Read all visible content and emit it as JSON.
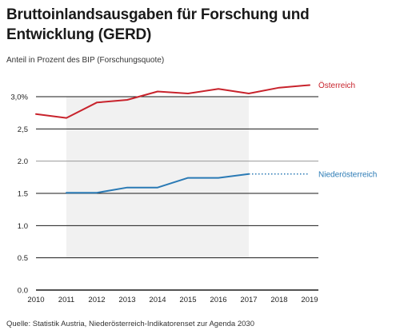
{
  "chart_data": {
    "type": "line",
    "title": "Bruttoinlandsausgaben für Forschung und Entwicklung (GERD)",
    "subtitle": "Anteil in Prozent des BIP (Forschungsquote)",
    "source": "Quelle: Statistik Austria, Niederösterreich-Indikatorenset zur Agenda 2030",
    "x": [
      2010,
      2011,
      2012,
      2013,
      2014,
      2015,
      2016,
      2017,
      2018,
      2019
    ],
    "xlim": [
      2010,
      2019
    ],
    "ylim": [
      0,
      3.0
    ],
    "yticks": [
      {
        "value": 0.0,
        "label": "0.0"
      },
      {
        "value": 0.5,
        "label": "0.5"
      },
      {
        "value": 1.0,
        "label": "1.0"
      },
      {
        "value": 1.5,
        "label": "1.5"
      },
      {
        "value": 2.0,
        "label": "2.0"
      },
      {
        "value": 2.5,
        "label": "2,5"
      },
      {
        "value": 3.0,
        "label": "3,0%"
      }
    ],
    "shaded_range": {
      "x": [
        2011,
        2017
      ],
      "y": [
        0.5,
        3.0
      ]
    },
    "series": [
      {
        "name": "Österreich",
        "color": "#c8232c",
        "values": [
          2.73,
          2.67,
          2.91,
          2.95,
          3.08,
          3.05,
          3.12,
          3.05,
          3.14,
          3.18
        ]
      },
      {
        "name": "Niederösterreich",
        "color": "#2a7ab5",
        "values": [
          null,
          1.51,
          1.51,
          1.59,
          1.59,
          1.74,
          1.74,
          1.8,
          null,
          null
        ],
        "dotted_extension": {
          "from": 2017,
          "to": 2019,
          "value": 1.8
        }
      }
    ]
  }
}
